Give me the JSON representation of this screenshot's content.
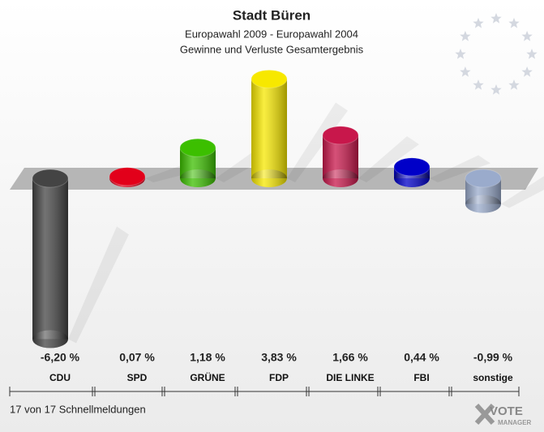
{
  "chart_data": {
    "type": "bar3d",
    "title": "Stadt Büren",
    "subtitle": [
      "Europawahl 2009 - Europawahl 2004",
      "Gewinne und Verluste Gesamtergebnis"
    ],
    "categories": [
      "CDU",
      "SPD",
      "GRÜNE",
      "FDP",
      "DIE LINKE",
      "FBI",
      "sonstige"
    ],
    "values": [
      -6.2,
      0.07,
      1.18,
      3.83,
      1.66,
      0.44,
      -0.99
    ],
    "value_labels": [
      "-6,20 %",
      "0,07 %",
      "1,18 %",
      "3,83 %",
      "1,66 %",
      "0,44 %",
      "-0,99 %"
    ],
    "colors": [
      "#444444",
      "#e2001a",
      "#3cbf00",
      "#f7e800",
      "#c8174b",
      "#0000c8",
      "#9aabcc"
    ],
    "footer": "17 von 17 Schnellmeldungen",
    "logo": {
      "text": "VOTE",
      "subtext": "MANAGER"
    }
  }
}
